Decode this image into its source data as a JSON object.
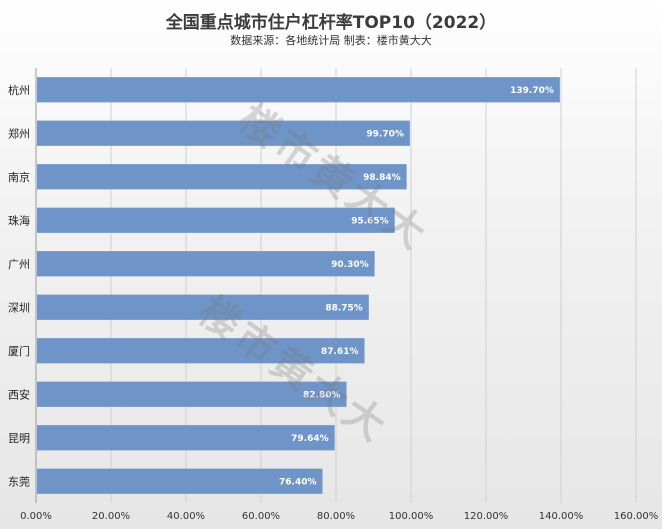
{
  "chart_data": {
    "type": "bar",
    "orientation": "horizontal",
    "title": "全国重点城市住户杠杆率TOP10（2022）",
    "subtitle": "数据来源：各地统计局   制表：楼市黄大大",
    "categories": [
      "杭州",
      "郑州",
      "南京",
      "珠海",
      "广州",
      "深圳",
      "厦门",
      "西安",
      "昆明",
      "东莞"
    ],
    "values": [
      139.7,
      99.7,
      98.84,
      95.65,
      90.3,
      88.75,
      87.61,
      82.8,
      79.64,
      76.4
    ],
    "value_labels": [
      "139.70%",
      "99.70%",
      "98.84%",
      "95.65%",
      "90.30%",
      "88.75%",
      "87.61%",
      "82.80%",
      "79.64%",
      "76.40%"
    ],
    "xlim": [
      0,
      160
    ],
    "xticks": [
      0,
      20,
      40,
      60,
      80,
      100,
      120,
      140,
      160
    ],
    "xtick_labels": [
      "0.00%",
      "20.00%",
      "40.00%",
      "60.00%",
      "80.00%",
      "100.00%",
      "120.00%",
      "140.00%",
      "160.00%"
    ],
    "grid": true,
    "bar_color": "#6f95c8"
  },
  "watermark": "楼市黄大大"
}
